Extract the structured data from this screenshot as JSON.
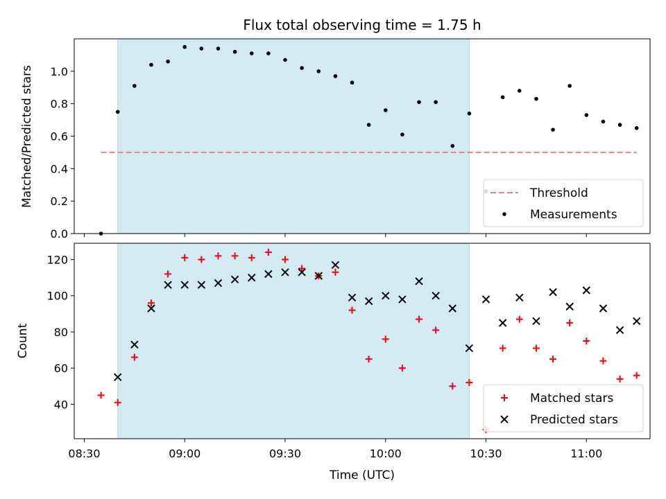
{
  "chart_data": {
    "title": "Flux total observing time = 1.75 h",
    "xlabel": "Time (UTC)",
    "x_tick_labels": [
      "08:30",
      "09:00",
      "09:30",
      "10:00",
      "10:30",
      "11:00"
    ],
    "shaded_span": {
      "start": "08:40",
      "end": "10:25",
      "color": "#add8e6"
    },
    "panels": [
      {
        "type": "scatter",
        "ylabel": "Matched/Predicted stars",
        "ylim": [
          0,
          1.2
        ],
        "yticks": [
          0.0,
          0.2,
          0.4,
          0.6,
          0.8,
          1.0
        ],
        "y_tick_labels": [
          "0.0",
          "0.2",
          "0.4",
          "0.6",
          "0.8",
          "1.0"
        ],
        "threshold": {
          "name": "Threshold",
          "value": 0.5,
          "x_start": "08:35",
          "x_end": "11:15",
          "color": "#f08080"
        },
        "legend": {
          "position": "lower-right",
          "entries": [
            "Threshold",
            "Measurements"
          ]
        },
        "series": [
          {
            "name": "Measurements",
            "marker": "dot",
            "color": "#000000",
            "x": [
              "08:35",
              "08:40",
              "08:45",
              "08:50",
              "08:55",
              "09:00",
              "09:05",
              "09:10",
              "09:15",
              "09:20",
              "09:25",
              "09:30",
              "09:35",
              "09:40",
              "09:45",
              "09:50",
              "09:55",
              "10:00",
              "10:05",
              "10:10",
              "10:15",
              "10:20",
              "10:25",
              "10:30",
              "10:35",
              "10:40",
              "10:45",
              "10:50",
              "10:55",
              "11:00",
              "11:05",
              "11:10",
              "11:15"
            ],
            "y": [
              0.0,
              0.75,
              0.91,
              1.04,
              1.06,
              1.15,
              1.14,
              1.14,
              1.12,
              1.11,
              1.11,
              1.07,
              1.02,
              1.0,
              0.97,
              0.93,
              0.67,
              0.76,
              0.61,
              0.81,
              0.81,
              0.54,
              0.74,
              0.26,
              0.84,
              0.88,
              0.83,
              0.64,
              0.91,
              0.73,
              0.69,
              0.67,
              0.65
            ]
          }
        ]
      },
      {
        "type": "scatter",
        "ylabel": "Count",
        "ylim": [
          21,
          129
        ],
        "yticks": [
          40,
          60,
          80,
          100,
          120
        ],
        "y_tick_labels": [
          "40",
          "60",
          "80",
          "100",
          "120"
        ],
        "legend": {
          "position": "lower-right",
          "entries": [
            "Matched stars",
            "Predicted stars"
          ]
        },
        "series": [
          {
            "name": "Matched stars",
            "marker": "plus",
            "color": "#ff0000",
            "x": [
              "08:35",
              "08:40",
              "08:45",
              "08:50",
              "08:55",
              "09:00",
              "09:05",
              "09:10",
              "09:15",
              "09:20",
              "09:25",
              "09:30",
              "09:35",
              "09:40",
              "09:45",
              "09:50",
              "09:55",
              "10:00",
              "10:05",
              "10:10",
              "10:15",
              "10:20",
              "10:25",
              "10:30",
              "10:35",
              "10:40",
              "10:45",
              "10:50",
              "10:55",
              "11:00",
              "11:05",
              "11:10",
              "11:15"
            ],
            "y": [
              45,
              41,
              66,
              96,
              112,
              121,
              120,
              122,
              122,
              121,
              124,
              120,
              115,
              111,
              113,
              92,
              65,
              76,
              60,
              87,
              81,
              50,
              52,
              26,
              71,
              87,
              71,
              65,
              85,
              75,
              64,
              54,
              56
            ]
          },
          {
            "name": "Predicted stars",
            "marker": "x",
            "color": "#000000",
            "x": [
              "08:40",
              "08:45",
              "08:50",
              "08:55",
              "09:00",
              "09:05",
              "09:10",
              "09:15",
              "09:20",
              "09:25",
              "09:30",
              "09:35",
              "09:40",
              "09:45",
              "09:50",
              "09:55",
              "10:00",
              "10:05",
              "10:10",
              "10:15",
              "10:20",
              "10:25",
              "10:30",
              "10:35",
              "10:40",
              "10:45",
              "10:50",
              "10:55",
              "11:00",
              "11:05",
              "11:10",
              "11:15"
            ],
            "y": [
              55,
              73,
              93,
              106,
              106,
              106,
              107,
              109,
              110,
              112,
              113,
              113,
              111,
              117,
              99,
              97,
              100,
              98,
              108,
              100,
              93,
              71,
              98,
              85,
              99,
              86,
              102,
              94,
              103,
              93,
              81,
              86
            ]
          }
        ]
      }
    ]
  }
}
